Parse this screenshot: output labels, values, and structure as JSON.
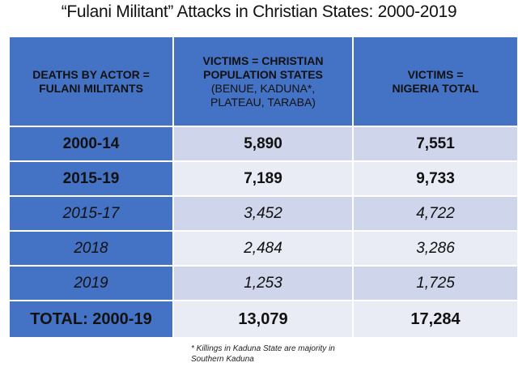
{
  "title": "“Fulani Militant” Attacks in Christian States: 2000-2019",
  "table": {
    "headers": [
      {
        "main": "DEATHS BY ACTOR = FULANI MILITANTS",
        "sub": ""
      },
      {
        "main": "VICTIMS = CHRISTIAN POPULATION STATES",
        "sub": "(BENUE, KADUNA*, PLATEAU, TARABA)"
      },
      {
        "main": "VICTIMS = NIGERIA TOTAL",
        "sub": ""
      }
    ],
    "rows": [
      {
        "period": "2000-14",
        "christian_states": "5,890",
        "nigeria_total": "7,551"
      },
      {
        "period": "2015-19",
        "christian_states": "7,189",
        "nigeria_total": "9,733"
      },
      {
        "period": "2015-17",
        "christian_states": "3,452",
        "nigeria_total": "4,722"
      },
      {
        "period": "2018",
        "christian_states": "2,484",
        "nigeria_total": "3,286"
      },
      {
        "period": "2019",
        "christian_states": "1,253",
        "nigeria_total": "1,725"
      },
      {
        "period": "TOTAL: 2000-19",
        "christian_states": "13,079",
        "nigeria_total": "17,284"
      }
    ]
  },
  "footnote": {
    "line1": "* Killings in Kaduna State are majority in",
    "line2": "Southern Kaduna"
  },
  "colors": {
    "header_blue": "#4472c4",
    "row_dark": "#cfd5ea",
    "row_light": "#e9ebf5"
  }
}
